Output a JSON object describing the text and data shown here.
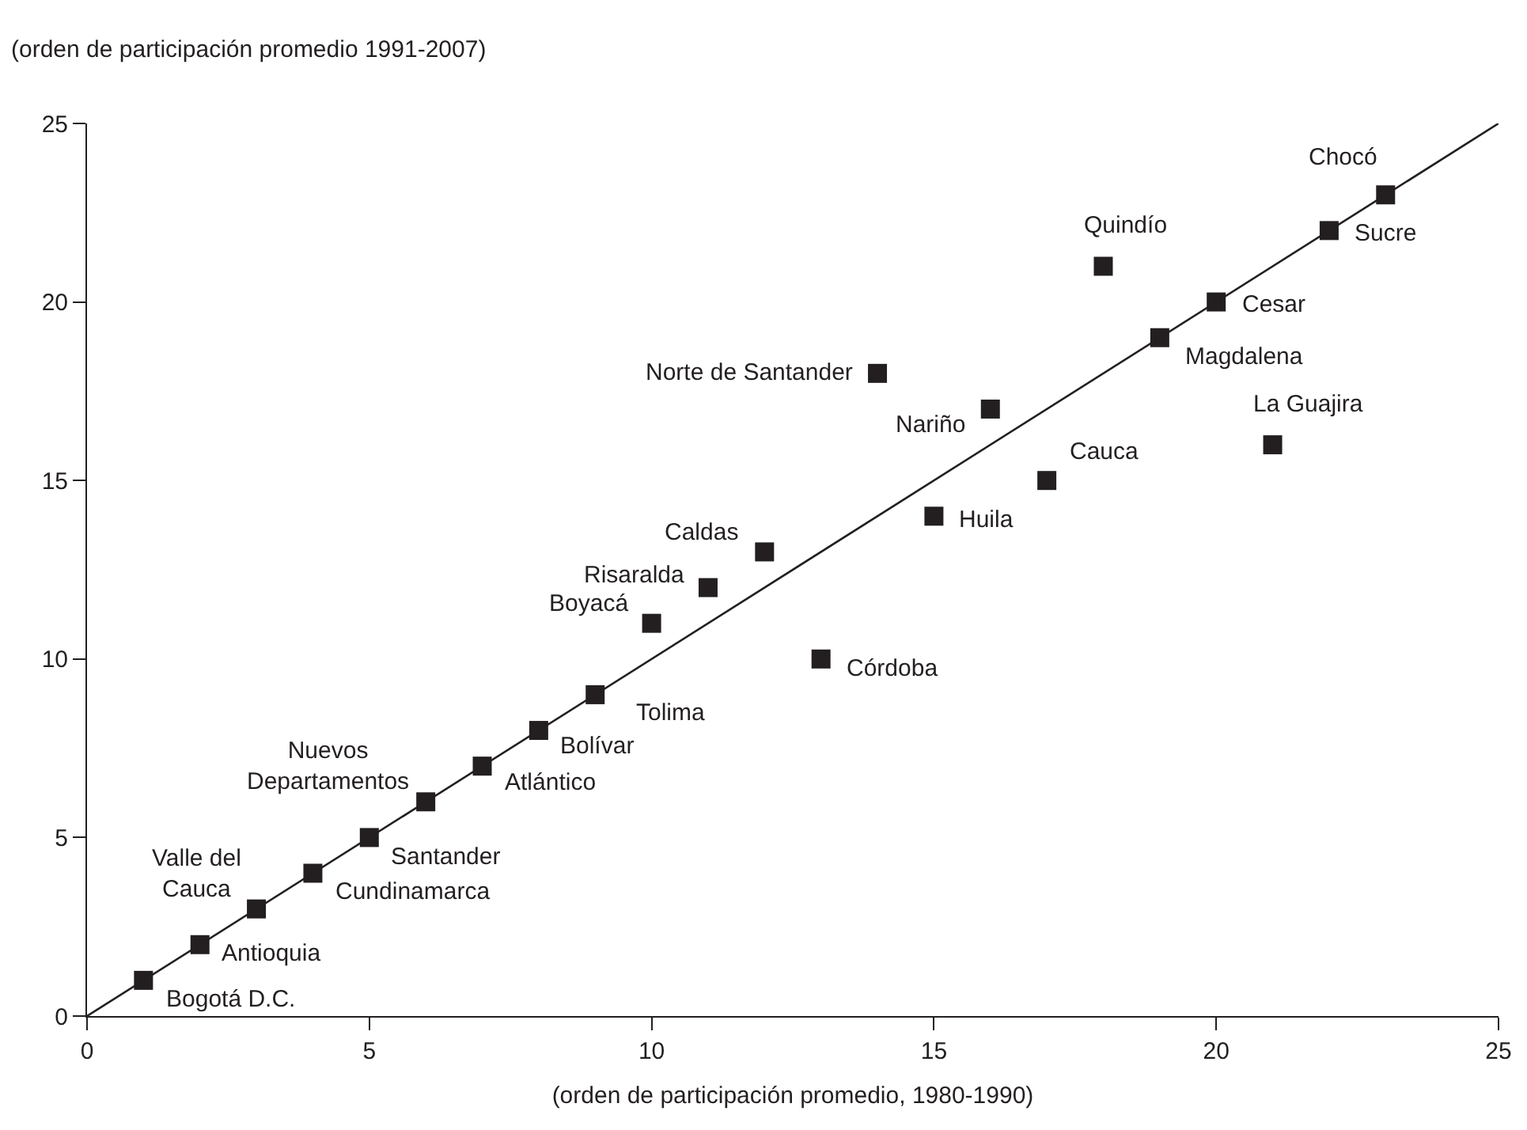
{
  "chart_data": {
    "type": "scatter",
    "ylabel": "(orden de participación promedio 1991-2007)",
    "xlabel": "(orden de participación promedio, 1980-1990)",
    "xlim": [
      0,
      25
    ],
    "ylim": [
      0,
      25
    ],
    "xticks": [
      0,
      5,
      10,
      15,
      20,
      25
    ],
    "yticks": [
      0,
      5,
      10,
      15,
      20,
      25
    ],
    "series": [
      {
        "marker": "square",
        "color": "#231f20",
        "x": [
          1,
          2,
          3,
          4,
          5,
          6,
          7,
          8,
          9,
          10,
          11,
          12,
          13,
          14,
          15,
          16,
          17,
          18,
          19,
          20,
          21,
          22,
          23
        ],
        "values": [
          1,
          2,
          3,
          4,
          5,
          6,
          7,
          8,
          9,
          11,
          12,
          13,
          10,
          18,
          14,
          17,
          15,
          21,
          19,
          20,
          16,
          22,
          23
        ]
      },
      {
        "type": "line",
        "marker": "none",
        "color": "#231f20",
        "x": [
          0,
          25
        ],
        "values": [
          0,
          25
        ]
      }
    ],
    "annotations": [
      {
        "text": "Bogotá D.C.",
        "x": 1,
        "y": 1
      },
      {
        "text": "Antioquia",
        "x": 2,
        "y": 2
      },
      {
        "text": "Valle del\nCauca",
        "x": 3,
        "y": 3
      },
      {
        "text": "Cundinamarca",
        "x": 4,
        "y": 4
      },
      {
        "text": "Santander",
        "x": 5,
        "y": 5
      },
      {
        "text": "Nuevos\nDepartamentos",
        "x": 6,
        "y": 6
      },
      {
        "text": "Atlántico",
        "x": 7,
        "y": 7
      },
      {
        "text": "Bolívar",
        "x": 8,
        "y": 8
      },
      {
        "text": "Tolima",
        "x": 9,
        "y": 9
      },
      {
        "text": "Boyacá",
        "x": 10,
        "y": 11
      },
      {
        "text": "Risaralda",
        "x": 11,
        "y": 12
      },
      {
        "text": "Caldas",
        "x": 12,
        "y": 13
      },
      {
        "text": "Córdoba",
        "x": 13,
        "y": 10
      },
      {
        "text": "Norte de Santander",
        "x": 14,
        "y": 18
      },
      {
        "text": "Huila",
        "x": 15,
        "y": 14
      },
      {
        "text": "Nariño",
        "x": 16,
        "y": 17
      },
      {
        "text": "Cauca",
        "x": 17,
        "y": 15
      },
      {
        "text": "Quindío",
        "x": 18,
        "y": 21
      },
      {
        "text": "Magdalena",
        "x": 19,
        "y": 19
      },
      {
        "text": "Cesar",
        "x": 20,
        "y": 20
      },
      {
        "text": "La Guajira",
        "x": 21,
        "y": 16
      },
      {
        "text": "Sucre",
        "x": 22,
        "y": 22
      },
      {
        "text": "Chocó",
        "x": 23,
        "y": 23
      }
    ]
  }
}
